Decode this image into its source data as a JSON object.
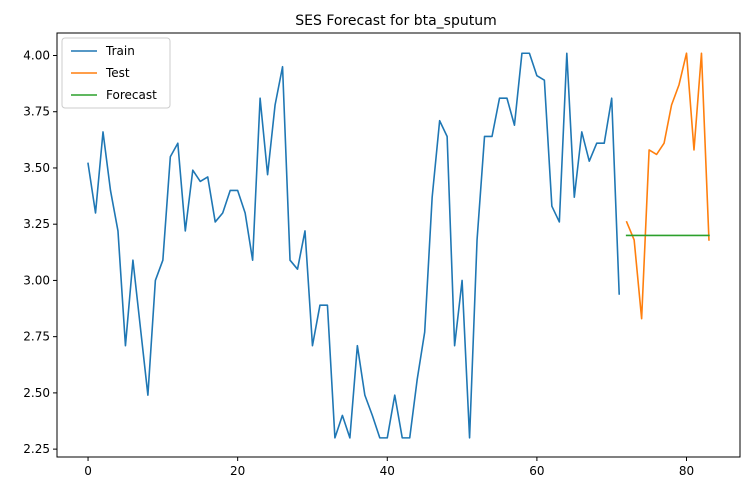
{
  "chart_data": {
    "type": "line",
    "title": "SES Forecast for bta_sputum",
    "xlabel": "",
    "ylabel": "",
    "xlim": [
      -4.15,
      87.15
    ],
    "ylim": [
      2.215,
      4.1
    ],
    "xticks": [
      0,
      20,
      40,
      60,
      80
    ],
    "yticks": [
      2.25,
      2.5,
      2.75,
      3.0,
      3.25,
      3.5,
      3.75,
      4.0
    ],
    "ytick_labels": [
      "2.25",
      "2.50",
      "2.75",
      "3.00",
      "3.25",
      "3.50",
      "3.75",
      "4.00"
    ],
    "grid": false,
    "legend_position": "upper-left",
    "series": [
      {
        "name": "Train",
        "color": "#1f77b4",
        "x": [
          0,
          1,
          2,
          3,
          4,
          5,
          6,
          7,
          8,
          9,
          10,
          11,
          12,
          13,
          14,
          15,
          16,
          17,
          18,
          19,
          20,
          21,
          22,
          23,
          24,
          25,
          26,
          27,
          28,
          29,
          30,
          31,
          32,
          33,
          34,
          35,
          36,
          37,
          38,
          39,
          40,
          41,
          42,
          43,
          44,
          45,
          46,
          47,
          48,
          49,
          50,
          51,
          52,
          53,
          54,
          55,
          56,
          57,
          58,
          59,
          60,
          61,
          62,
          63,
          64,
          65,
          66,
          67,
          68,
          69,
          70,
          71
        ],
        "y": [
          3.52,
          3.3,
          3.66,
          3.4,
          3.22,
          2.71,
          3.09,
          2.79,
          2.49,
          3.0,
          3.09,
          3.55,
          3.61,
          3.22,
          3.49,
          3.44,
          3.46,
          3.26,
          3.3,
          3.4,
          3.4,
          3.3,
          3.09,
          3.81,
          3.47,
          3.78,
          3.95,
          3.09,
          3.05,
          3.22,
          2.71,
          2.89,
          2.89,
          2.3,
          2.4,
          2.3,
          2.71,
          2.49,
          2.4,
          2.3,
          2.3,
          2.49,
          2.3,
          2.3,
          2.56,
          2.77,
          3.37,
          3.71,
          3.64,
          2.71,
          3.0,
          2.3,
          3.18,
          3.64,
          3.64,
          3.81,
          3.81,
          3.69,
          4.01,
          4.01,
          3.91,
          3.89,
          3.33,
          3.26,
          4.01,
          3.37,
          3.66,
          3.53,
          3.61,
          3.61,
          3.81,
          2.94
        ]
      },
      {
        "name": "Test",
        "color": "#ff7f0e",
        "x": [
          72,
          73,
          74,
          75,
          76,
          77,
          78,
          79,
          80,
          81,
          82,
          83
        ],
        "y": [
          3.26,
          3.18,
          2.83,
          3.58,
          3.56,
          3.61,
          3.78,
          3.87,
          4.01,
          3.58,
          4.01,
          3.18
        ]
      },
      {
        "name": "Forecast",
        "color": "#2ca02c",
        "x": [
          72,
          73,
          74,
          75,
          76,
          77,
          78,
          79,
          80,
          81,
          82,
          83
        ],
        "y": [
          3.2,
          3.2,
          3.2,
          3.2,
          3.2,
          3.2,
          3.2,
          3.2,
          3.2,
          3.2,
          3.2,
          3.2
        ]
      }
    ]
  }
}
